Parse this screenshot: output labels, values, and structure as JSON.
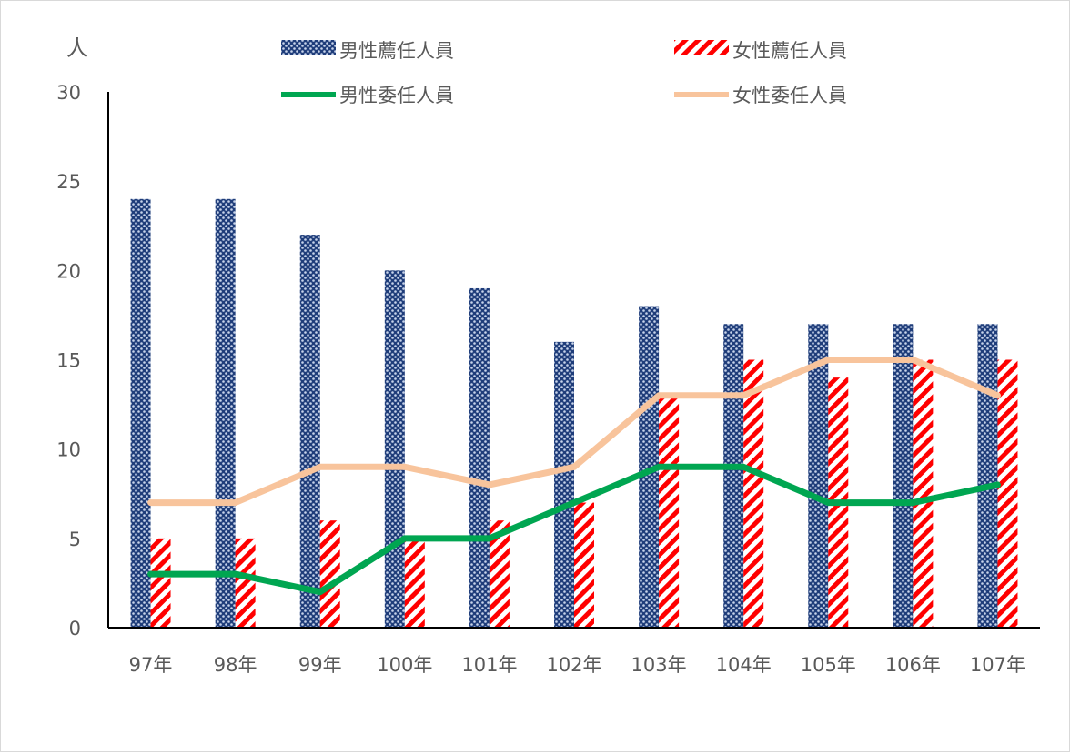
{
  "chart_data": {
    "type": "bar",
    "ylabel": "人",
    "ylim": [
      0,
      30
    ],
    "yticks": [
      "0",
      "5",
      "10",
      "15",
      "20",
      "25",
      "30"
    ],
    "categories": [
      "97年",
      "98年",
      "99年",
      "100年",
      "101年",
      "102年",
      "103年",
      "104年",
      "105年",
      "106年",
      "107年"
    ],
    "bar_series": [
      {
        "name": "男性薦任人員",
        "values": [
          24,
          24,
          22,
          20,
          19,
          16,
          18,
          17,
          17,
          17,
          17
        ],
        "color": "#1f3d7a"
      },
      {
        "name": "女性薦任人員",
        "values": [
          5,
          5,
          6,
          5,
          6,
          7,
          13,
          15,
          14,
          15,
          15
        ],
        "color": "#ff0000"
      }
    ],
    "line_series": [
      {
        "name": "男性委任人員",
        "values": [
          3,
          3,
          2,
          5,
          5,
          7,
          9,
          9,
          7,
          7,
          8
        ],
        "color": "#00a651"
      },
      {
        "name": "女性委任人員",
        "values": [
          7,
          7,
          9,
          9,
          8,
          9,
          13,
          13,
          15,
          15,
          13
        ],
        "color": "#f8c49c"
      }
    ],
    "legend_position": "top",
    "grid": false
  }
}
